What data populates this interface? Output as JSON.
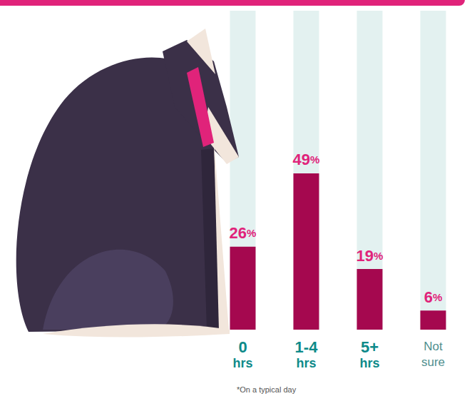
{
  "chart_data": {
    "type": "bar",
    "categories": [
      "0 hrs",
      "1-4 hrs",
      "5+ hrs",
      "Not sure"
    ],
    "values": [
      26,
      49,
      19,
      6
    ],
    "value_labels": [
      "26%",
      "49%",
      "19%",
      "6%"
    ],
    "color": "#a5084f",
    "ylim": [
      0,
      100
    ],
    "grid": false,
    "data_labels": true,
    "tick_labels": "x",
    "note": "*On a typical day"
  }
}
